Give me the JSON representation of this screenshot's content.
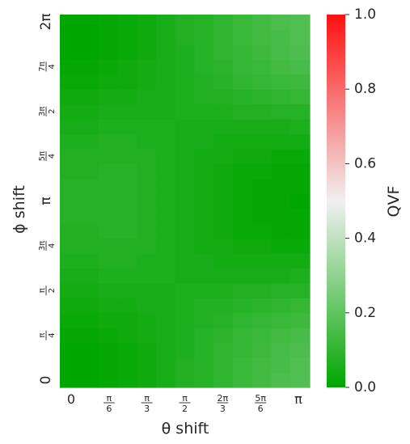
{
  "chart_data": {
    "type": "heatmap",
    "xlabel": "θ shift",
    "ylabel": "ϕ shift",
    "x_tick_labels": [
      {
        "kind": "plain",
        "text": "0",
        "value": 0
      },
      {
        "kind": "frac",
        "num": "π",
        "den": "6",
        "value": 0.5236
      },
      {
        "kind": "frac",
        "num": "π",
        "den": "3",
        "value": 1.0472
      },
      {
        "kind": "frac",
        "num": "π",
        "den": "2",
        "value": 1.5708
      },
      {
        "kind": "frac",
        "num": "2π",
        "den": "3",
        "value": 2.0944
      },
      {
        "kind": "frac",
        "num": "5π",
        "den": "6",
        "value": 2.618
      },
      {
        "kind": "plain",
        "text": "π",
        "value": 3.1416
      }
    ],
    "y_tick_labels": [
      {
        "kind": "plain",
        "text": "0",
        "value": 0
      },
      {
        "kind": "frac",
        "num": "π",
        "den": "4",
        "value": 0.7854
      },
      {
        "kind": "frac",
        "num": "π",
        "den": "2",
        "value": 1.5708
      },
      {
        "kind": "frac",
        "num": "3π",
        "den": "4",
        "value": 2.3562
      },
      {
        "kind": "plain",
        "text": "π",
        "value": 3.1416
      },
      {
        "kind": "frac",
        "num": "5π",
        "den": "4",
        "value": 3.927
      },
      {
        "kind": "frac",
        "num": "3π",
        "den": "2",
        "value": 4.7124
      },
      {
        "kind": "frac",
        "num": "7π",
        "den": "4",
        "value": 5.4978
      },
      {
        "kind": "plain",
        "text": "2π",
        "value": 6.2832
      }
    ],
    "n_cols": 13,
    "n_rows": 25,
    "values_note": "rows listed from phi = 0 (bottom) to phi = 2π (top); columns from theta = 0 to theta = π",
    "values": [
      [
        0.0,
        0.0,
        0.01,
        0.02,
        0.03,
        0.05,
        0.07,
        0.08,
        0.1,
        0.12,
        0.14,
        0.16,
        0.17
      ],
      [
        0.0,
        0.0,
        0.01,
        0.02,
        0.03,
        0.05,
        0.07,
        0.08,
        0.1,
        0.12,
        0.14,
        0.15,
        0.17
      ],
      [
        0.0,
        0.0,
        0.01,
        0.02,
        0.03,
        0.05,
        0.06,
        0.08,
        0.1,
        0.11,
        0.13,
        0.15,
        0.16
      ],
      [
        0.01,
        0.01,
        0.02,
        0.03,
        0.04,
        0.05,
        0.06,
        0.08,
        0.09,
        0.11,
        0.12,
        0.14,
        0.15
      ],
      [
        0.02,
        0.02,
        0.03,
        0.03,
        0.04,
        0.05,
        0.06,
        0.07,
        0.08,
        0.1,
        0.11,
        0.12,
        0.13
      ],
      [
        0.03,
        0.03,
        0.04,
        0.04,
        0.05,
        0.05,
        0.06,
        0.07,
        0.07,
        0.08,
        0.09,
        0.1,
        0.11
      ],
      [
        0.04,
        0.04,
        0.05,
        0.05,
        0.05,
        0.05,
        0.06,
        0.06,
        0.06,
        0.07,
        0.07,
        0.08,
        0.08
      ],
      [
        0.05,
        0.05,
        0.06,
        0.06,
        0.06,
        0.06,
        0.05,
        0.05,
        0.05,
        0.05,
        0.05,
        0.05,
        0.06
      ],
      [
        0.06,
        0.06,
        0.07,
        0.07,
        0.06,
        0.06,
        0.05,
        0.05,
        0.04,
        0.04,
        0.04,
        0.04,
        0.04
      ],
      [
        0.07,
        0.07,
        0.07,
        0.07,
        0.07,
        0.06,
        0.05,
        0.04,
        0.04,
        0.03,
        0.03,
        0.02,
        0.02
      ],
      [
        0.07,
        0.07,
        0.08,
        0.08,
        0.07,
        0.06,
        0.05,
        0.04,
        0.03,
        0.02,
        0.02,
        0.01,
        0.01
      ],
      [
        0.08,
        0.08,
        0.08,
        0.08,
        0.07,
        0.06,
        0.05,
        0.04,
        0.03,
        0.02,
        0.01,
        0.01,
        0.01
      ],
      [
        0.08,
        0.08,
        0.08,
        0.08,
        0.07,
        0.06,
        0.05,
        0.04,
        0.03,
        0.02,
        0.01,
        0.01,
        0.0
      ],
      [
        0.08,
        0.08,
        0.08,
        0.08,
        0.07,
        0.06,
        0.05,
        0.04,
        0.03,
        0.02,
        0.01,
        0.01,
        0.01
      ],
      [
        0.07,
        0.07,
        0.08,
        0.08,
        0.07,
        0.06,
        0.05,
        0.04,
        0.03,
        0.02,
        0.02,
        0.01,
        0.01
      ],
      [
        0.07,
        0.07,
        0.07,
        0.07,
        0.07,
        0.06,
        0.05,
        0.04,
        0.04,
        0.03,
        0.03,
        0.02,
        0.02
      ],
      [
        0.06,
        0.06,
        0.07,
        0.07,
        0.06,
        0.06,
        0.05,
        0.05,
        0.04,
        0.04,
        0.04,
        0.04,
        0.04
      ],
      [
        0.05,
        0.05,
        0.06,
        0.06,
        0.06,
        0.06,
        0.05,
        0.05,
        0.05,
        0.05,
        0.05,
        0.05,
        0.06
      ],
      [
        0.04,
        0.04,
        0.05,
        0.05,
        0.05,
        0.05,
        0.06,
        0.06,
        0.06,
        0.07,
        0.07,
        0.08,
        0.08
      ],
      [
        0.03,
        0.03,
        0.04,
        0.04,
        0.05,
        0.05,
        0.06,
        0.07,
        0.07,
        0.08,
        0.09,
        0.1,
        0.11
      ],
      [
        0.02,
        0.02,
        0.03,
        0.03,
        0.04,
        0.05,
        0.06,
        0.07,
        0.08,
        0.1,
        0.11,
        0.12,
        0.13
      ],
      [
        0.01,
        0.01,
        0.02,
        0.03,
        0.04,
        0.05,
        0.06,
        0.08,
        0.09,
        0.11,
        0.12,
        0.14,
        0.15
      ],
      [
        0.0,
        0.0,
        0.01,
        0.02,
        0.03,
        0.05,
        0.06,
        0.08,
        0.1,
        0.11,
        0.13,
        0.15,
        0.16
      ],
      [
        0.0,
        0.0,
        0.01,
        0.02,
        0.03,
        0.05,
        0.07,
        0.08,
        0.1,
        0.12,
        0.14,
        0.15,
        0.17
      ],
      [
        0.0,
        0.0,
        0.01,
        0.02,
        0.03,
        0.05,
        0.07,
        0.08,
        0.1,
        0.12,
        0.14,
        0.16,
        0.17
      ]
    ],
    "colorbar": {
      "label": "QVF",
      "range": [
        0.0,
        1.0
      ],
      "ticks": [
        "0.0",
        "0.2",
        "0.4",
        "0.6",
        "0.8",
        "1.0"
      ],
      "colors": [
        "#00a600",
        "#f0f0f0",
        "#ff1010"
      ]
    },
    "legend": "none",
    "grid": false
  }
}
